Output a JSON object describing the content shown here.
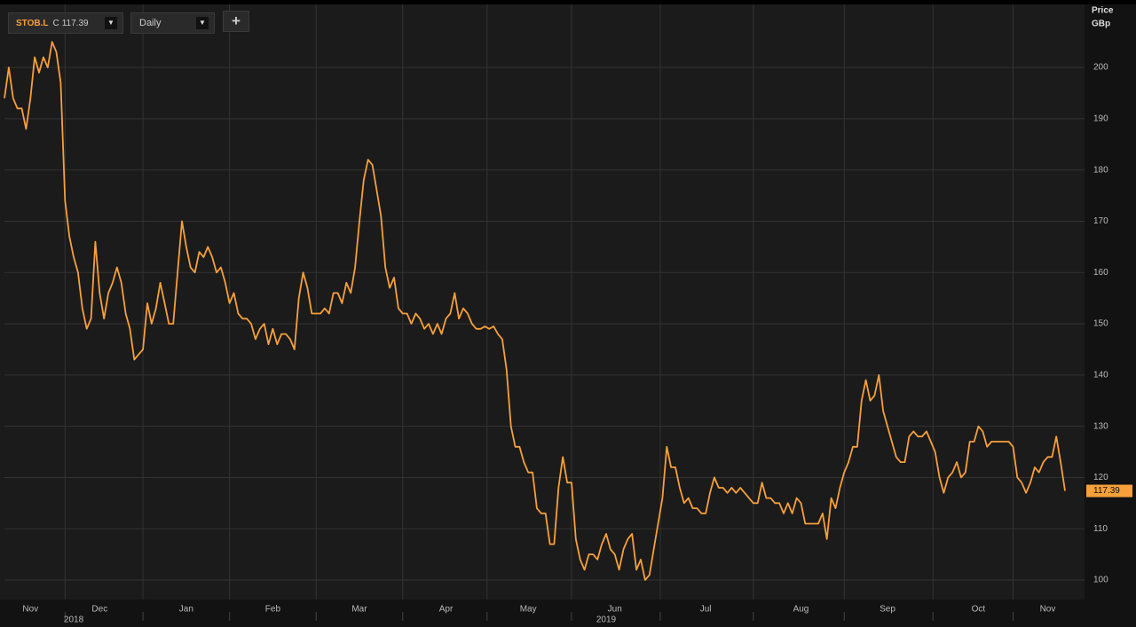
{
  "header": {
    "symbol": "STOB.L",
    "close_prefix": "C",
    "interval": "Daily",
    "add_button": "+"
  },
  "chart_data": {
    "type": "line",
    "y_axis_label": [
      "Price",
      "GBp"
    ],
    "series": [
      {
        "name": "STOB.L",
        "color": "#f7a03a",
        "values": [
          194,
          200,
          194,
          192,
          192,
          188,
          194,
          202,
          199,
          202,
          200,
          205,
          203,
          197,
          174,
          167,
          163,
          160,
          153,
          149,
          151,
          166,
          156,
          151,
          156,
          158,
          161,
          158,
          152,
          149,
          143,
          144,
          145,
          154,
          150,
          153,
          158,
          154,
          150,
          150,
          160,
          170,
          165,
          161,
          160,
          164,
          163,
          165,
          163,
          160,
          161,
          158,
          154,
          156,
          152,
          151,
          151,
          150,
          147,
          149,
          150,
          146,
          149,
          146,
          148,
          148,
          147,
          145,
          155,
          160,
          157,
          152,
          152,
          152,
          153,
          152,
          156,
          156,
          154,
          158,
          156,
          161,
          170,
          178,
          182,
          181,
          176,
          171,
          161,
          157,
          159,
          153,
          152,
          152,
          150,
          152,
          151,
          149,
          150,
          148,
          150,
          148,
          151,
          152,
          156,
          151,
          153,
          152,
          150,
          149,
          149,
          149.5,
          149,
          149.5,
          148,
          147,
          141,
          130,
          126,
          126,
          123,
          121,
          121,
          114,
          113,
          113,
          107,
          107,
          118,
          124,
          119,
          119,
          108,
          104,
          102,
          105,
          105,
          104,
          107,
          109,
          106,
          105,
          102,
          106,
          108,
          109,
          102,
          104,
          100,
          101,
          106,
          111,
          116,
          126,
          122,
          122,
          118,
          115,
          116,
          114,
          114,
          113,
          113,
          117,
          120,
          118,
          118,
          117,
          118,
          117,
          118,
          117,
          116,
          115,
          115,
          119,
          116,
          116,
          115,
          115,
          113,
          115,
          113,
          116,
          115,
          111,
          111,
          111,
          111,
          113,
          108,
          116,
          114,
          118,
          121,
          123,
          126,
          126,
          135,
          139,
          135,
          136,
          140,
          133,
          130,
          127,
          124,
          123,
          123,
          128,
          129,
          128,
          128,
          129,
          127,
          125,
          120,
          117,
          120,
          121,
          123,
          120,
          121,
          127,
          127,
          130,
          129,
          126,
          127,
          127,
          127,
          127,
          127,
          126,
          120,
          119,
          117,
          119,
          122,
          121,
          123,
          124,
          124,
          128,
          123,
          117.39
        ]
      }
    ],
    "xticks": [
      {
        "value": 6,
        "label": "Nov"
      },
      {
        "value": 22,
        "label": "Dec"
      },
      {
        "value": 42,
        "label": "Jan"
      },
      {
        "value": 62,
        "label": "Feb"
      },
      {
        "value": 82,
        "label": "Mar"
      },
      {
        "value": 102,
        "label": "Apr"
      },
      {
        "value": 121,
        "label": "May"
      },
      {
        "value": 141,
        "label": "Jun"
      },
      {
        "value": 162,
        "label": "Jul"
      },
      {
        "value": 184,
        "label": "Aug"
      },
      {
        "value": 204,
        "label": "Sep"
      },
      {
        "value": 225,
        "label": "Oct"
      },
      {
        "value": 241,
        "label": "Nov"
      }
    ],
    "year_labels": [
      {
        "value": 16,
        "label": "2018"
      },
      {
        "value": 139,
        "label": "2019"
      }
    ],
    "ylim": [
      96.2,
      212.3
    ],
    "yticks": [
      100,
      110,
      120,
      130,
      140,
      150,
      160,
      170,
      180,
      190,
      200
    ],
    "grid": true
  }
}
